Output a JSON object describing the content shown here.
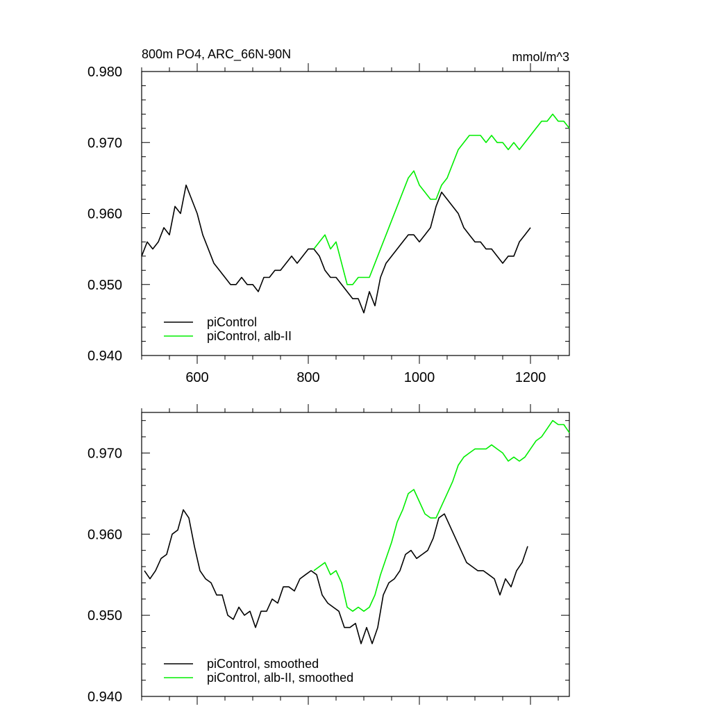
{
  "figure": {
    "title_left": "800m PO4, ARC_66N-90N",
    "title_right": "mmol/m^3"
  },
  "colors": {
    "black": "#000000",
    "green": "#00ee00"
  },
  "chart_data": [
    {
      "type": "line",
      "title": "800m PO4, ARC_66N-90N",
      "units": "mmol/m^3",
      "xlabel": "",
      "ylabel": "",
      "xlim": [
        500,
        1270
      ],
      "ylim": [
        0.94,
        0.98
      ],
      "xticks": [
        600,
        800,
        1000,
        1200
      ],
      "xtick_labels": [
        "600",
        "800",
        "1000",
        "1200"
      ],
      "yticks": [
        0.94,
        0.95,
        0.96,
        0.97,
        0.98
      ],
      "ytick_labels": [
        "0.940",
        "0.950",
        "0.960",
        "0.970",
        "0.980"
      ],
      "grid": false,
      "legend_position": "bottom-left",
      "series": [
        {
          "name": "piControl",
          "color": "#000000",
          "points": [
            [
              500,
              0.954
            ],
            [
              510,
              0.956
            ],
            [
              520,
              0.955
            ],
            [
              530,
              0.956
            ],
            [
              540,
              0.958
            ],
            [
              550,
              0.957
            ],
            [
              560,
              0.961
            ],
            [
              570,
              0.96
            ],
            [
              580,
              0.964
            ],
            [
              590,
              0.962
            ],
            [
              600,
              0.96
            ],
            [
              610,
              0.957
            ],
            [
              620,
              0.955
            ],
            [
              630,
              0.953
            ],
            [
              640,
              0.952
            ],
            [
              650,
              0.951
            ],
            [
              660,
              0.95
            ],
            [
              670,
              0.95
            ],
            [
              680,
              0.951
            ],
            [
              690,
              0.95
            ],
            [
              700,
              0.95
            ],
            [
              710,
              0.949
            ],
            [
              720,
              0.951
            ],
            [
              730,
              0.951
            ],
            [
              740,
              0.952
            ],
            [
              750,
              0.952
            ],
            [
              760,
              0.953
            ],
            [
              770,
              0.954
            ],
            [
              780,
              0.953
            ],
            [
              790,
              0.954
            ],
            [
              800,
              0.955
            ],
            [
              810,
              0.955
            ],
            [
              820,
              0.954
            ],
            [
              830,
              0.952
            ],
            [
              840,
              0.951
            ],
            [
              850,
              0.951
            ],
            [
              860,
              0.95
            ],
            [
              870,
              0.949
            ],
            [
              880,
              0.948
            ],
            [
              890,
              0.948
            ],
            [
              900,
              0.946
            ],
            [
              910,
              0.949
            ],
            [
              920,
              0.947
            ],
            [
              930,
              0.951
            ],
            [
              940,
              0.953
            ],
            [
              950,
              0.954
            ],
            [
              960,
              0.955
            ],
            [
              970,
              0.956
            ],
            [
              980,
              0.957
            ],
            [
              990,
              0.957
            ],
            [
              1000,
              0.956
            ],
            [
              1010,
              0.957
            ],
            [
              1020,
              0.958
            ],
            [
              1030,
              0.961
            ],
            [
              1040,
              0.963
            ],
            [
              1050,
              0.962
            ],
            [
              1060,
              0.961
            ],
            [
              1070,
              0.96
            ],
            [
              1080,
              0.958
            ],
            [
              1090,
              0.957
            ],
            [
              1100,
              0.956
            ],
            [
              1110,
              0.956
            ],
            [
              1120,
              0.955
            ],
            [
              1130,
              0.955
            ],
            [
              1140,
              0.954
            ],
            [
              1150,
              0.953
            ],
            [
              1160,
              0.954
            ],
            [
              1170,
              0.954
            ],
            [
              1180,
              0.956
            ],
            [
              1190,
              0.957
            ],
            [
              1200,
              0.958
            ]
          ]
        },
        {
          "name": "piControl, alb-II",
          "color": "#00ee00",
          "points": [
            [
              810,
              0.955
            ],
            [
              820,
              0.956
            ],
            [
              830,
              0.957
            ],
            [
              840,
              0.955
            ],
            [
              850,
              0.956
            ],
            [
              860,
              0.953
            ],
            [
              870,
              0.95
            ],
            [
              880,
              0.95
            ],
            [
              890,
              0.951
            ],
            [
              900,
              0.951
            ],
            [
              910,
              0.951
            ],
            [
              920,
              0.953
            ],
            [
              930,
              0.955
            ],
            [
              940,
              0.957
            ],
            [
              950,
              0.959
            ],
            [
              960,
              0.961
            ],
            [
              970,
              0.963
            ],
            [
              980,
              0.965
            ],
            [
              990,
              0.966
            ],
            [
              1000,
              0.964
            ],
            [
              1010,
              0.963
            ],
            [
              1020,
              0.962
            ],
            [
              1030,
              0.962
            ],
            [
              1040,
              0.964
            ],
            [
              1050,
              0.965
            ],
            [
              1060,
              0.967
            ],
            [
              1070,
              0.969
            ],
            [
              1080,
              0.97
            ],
            [
              1090,
              0.971
            ],
            [
              1100,
              0.971
            ],
            [
              1110,
              0.971
            ],
            [
              1120,
              0.97
            ],
            [
              1130,
              0.971
            ],
            [
              1140,
              0.97
            ],
            [
              1150,
              0.97
            ],
            [
              1160,
              0.969
            ],
            [
              1170,
              0.97
            ],
            [
              1180,
              0.969
            ],
            [
              1190,
              0.97
            ],
            [
              1200,
              0.971
            ],
            [
              1210,
              0.972
            ],
            [
              1220,
              0.973
            ],
            [
              1230,
              0.973
            ],
            [
              1240,
              0.974
            ],
            [
              1250,
              0.973
            ],
            [
              1260,
              0.973
            ],
            [
              1270,
              0.972
            ]
          ]
        }
      ]
    },
    {
      "type": "line",
      "title": "",
      "xlabel": "",
      "ylabel": "",
      "xlim": [
        500,
        1270
      ],
      "ylim": [
        0.94,
        0.975
      ],
      "xticks": [
        600,
        800,
        1000,
        1200
      ],
      "xtick_labels": [],
      "yticks": [
        0.94,
        0.95,
        0.96,
        0.97
      ],
      "ytick_labels": [
        "0.940",
        "0.950",
        "0.960",
        "0.970"
      ],
      "grid": false,
      "legend_position": "bottom-left",
      "series": [
        {
          "name": "piControl, smoothed",
          "color": "#000000",
          "points": [
            [
              505,
              0.9555
            ],
            [
              515,
              0.9545
            ],
            [
              525,
              0.9555
            ],
            [
              535,
              0.957
            ],
            [
              545,
              0.9575
            ],
            [
              555,
              0.96
            ],
            [
              565,
              0.9605
            ],
            [
              575,
              0.963
            ],
            [
              585,
              0.962
            ],
            [
              595,
              0.9585
            ],
            [
              605,
              0.9555
            ],
            [
              615,
              0.9545
            ],
            [
              625,
              0.954
            ],
            [
              635,
              0.9525
            ],
            [
              645,
              0.9525
            ],
            [
              655,
              0.95
            ],
            [
              665,
              0.9495
            ],
            [
              675,
              0.951
            ],
            [
              685,
              0.95
            ],
            [
              695,
              0.9505
            ],
            [
              705,
              0.9485
            ],
            [
              715,
              0.9505
            ],
            [
              725,
              0.9505
            ],
            [
              735,
              0.952
            ],
            [
              745,
              0.9515
            ],
            [
              755,
              0.9535
            ],
            [
              765,
              0.9535
            ],
            [
              775,
              0.953
            ],
            [
              785,
              0.9545
            ],
            [
              795,
              0.955
            ],
            [
              805,
              0.9555
            ],
            [
              815,
              0.955
            ],
            [
              825,
              0.9525
            ],
            [
              835,
              0.9515
            ],
            [
              845,
              0.951
            ],
            [
              855,
              0.9505
            ],
            [
              865,
              0.9485
            ],
            [
              875,
              0.9485
            ],
            [
              885,
              0.949
            ],
            [
              895,
              0.9465
            ],
            [
              905,
              0.9485
            ],
            [
              915,
              0.9465
            ],
            [
              925,
              0.9485
            ],
            [
              935,
              0.9525
            ],
            [
              945,
              0.954
            ],
            [
              955,
              0.9545
            ],
            [
              965,
              0.9555
            ],
            [
              975,
              0.9575
            ],
            [
              985,
              0.958
            ],
            [
              995,
              0.957
            ],
            [
              1005,
              0.9575
            ],
            [
              1015,
              0.958
            ],
            [
              1025,
              0.9595
            ],
            [
              1035,
              0.962
            ],
            [
              1045,
              0.9625
            ],
            [
              1055,
              0.961
            ],
            [
              1065,
              0.9595
            ],
            [
              1075,
              0.958
            ],
            [
              1085,
              0.9565
            ],
            [
              1095,
              0.956
            ],
            [
              1105,
              0.9555
            ],
            [
              1115,
              0.9555
            ],
            [
              1125,
              0.955
            ],
            [
              1135,
              0.9545
            ],
            [
              1145,
              0.9525
            ],
            [
              1155,
              0.9545
            ],
            [
              1165,
              0.9535
            ],
            [
              1175,
              0.9555
            ],
            [
              1185,
              0.9565
            ],
            [
              1195,
              0.9585
            ]
          ]
        },
        {
          "name": "piControl, alb-II, smoothed",
          "color": "#00ee00",
          "points": [
            [
              810,
              0.9555
            ],
            [
              820,
              0.956
            ],
            [
              830,
              0.9565
            ],
            [
              840,
              0.955
            ],
            [
              850,
              0.9555
            ],
            [
              860,
              0.954
            ],
            [
              870,
              0.951
            ],
            [
              880,
              0.9505
            ],
            [
              890,
              0.951
            ],
            [
              900,
              0.9505
            ],
            [
              910,
              0.951
            ],
            [
              920,
              0.9525
            ],
            [
              930,
              0.955
            ],
            [
              940,
              0.957
            ],
            [
              950,
              0.959
            ],
            [
              960,
              0.9615
            ],
            [
              970,
              0.963
            ],
            [
              980,
              0.965
            ],
            [
              990,
              0.9655
            ],
            [
              1000,
              0.964
            ],
            [
              1010,
              0.9625
            ],
            [
              1020,
              0.962
            ],
            [
              1030,
              0.962
            ],
            [
              1040,
              0.9635
            ],
            [
              1050,
              0.965
            ],
            [
              1060,
              0.9665
            ],
            [
              1070,
              0.9685
            ],
            [
              1080,
              0.9695
            ],
            [
              1090,
              0.97
            ],
            [
              1100,
              0.9705
            ],
            [
              1110,
              0.9705
            ],
            [
              1120,
              0.9705
            ],
            [
              1130,
              0.971
            ],
            [
              1140,
              0.9705
            ],
            [
              1150,
              0.97
            ],
            [
              1160,
              0.969
            ],
            [
              1170,
              0.9695
            ],
            [
              1180,
              0.969
            ],
            [
              1190,
              0.9695
            ],
            [
              1200,
              0.9705
            ],
            [
              1210,
              0.9715
            ],
            [
              1220,
              0.972
            ],
            [
              1230,
              0.973
            ],
            [
              1240,
              0.974
            ],
            [
              1250,
              0.9735
            ],
            [
              1260,
              0.9735
            ],
            [
              1270,
              0.9725
            ]
          ]
        }
      ]
    }
  ]
}
